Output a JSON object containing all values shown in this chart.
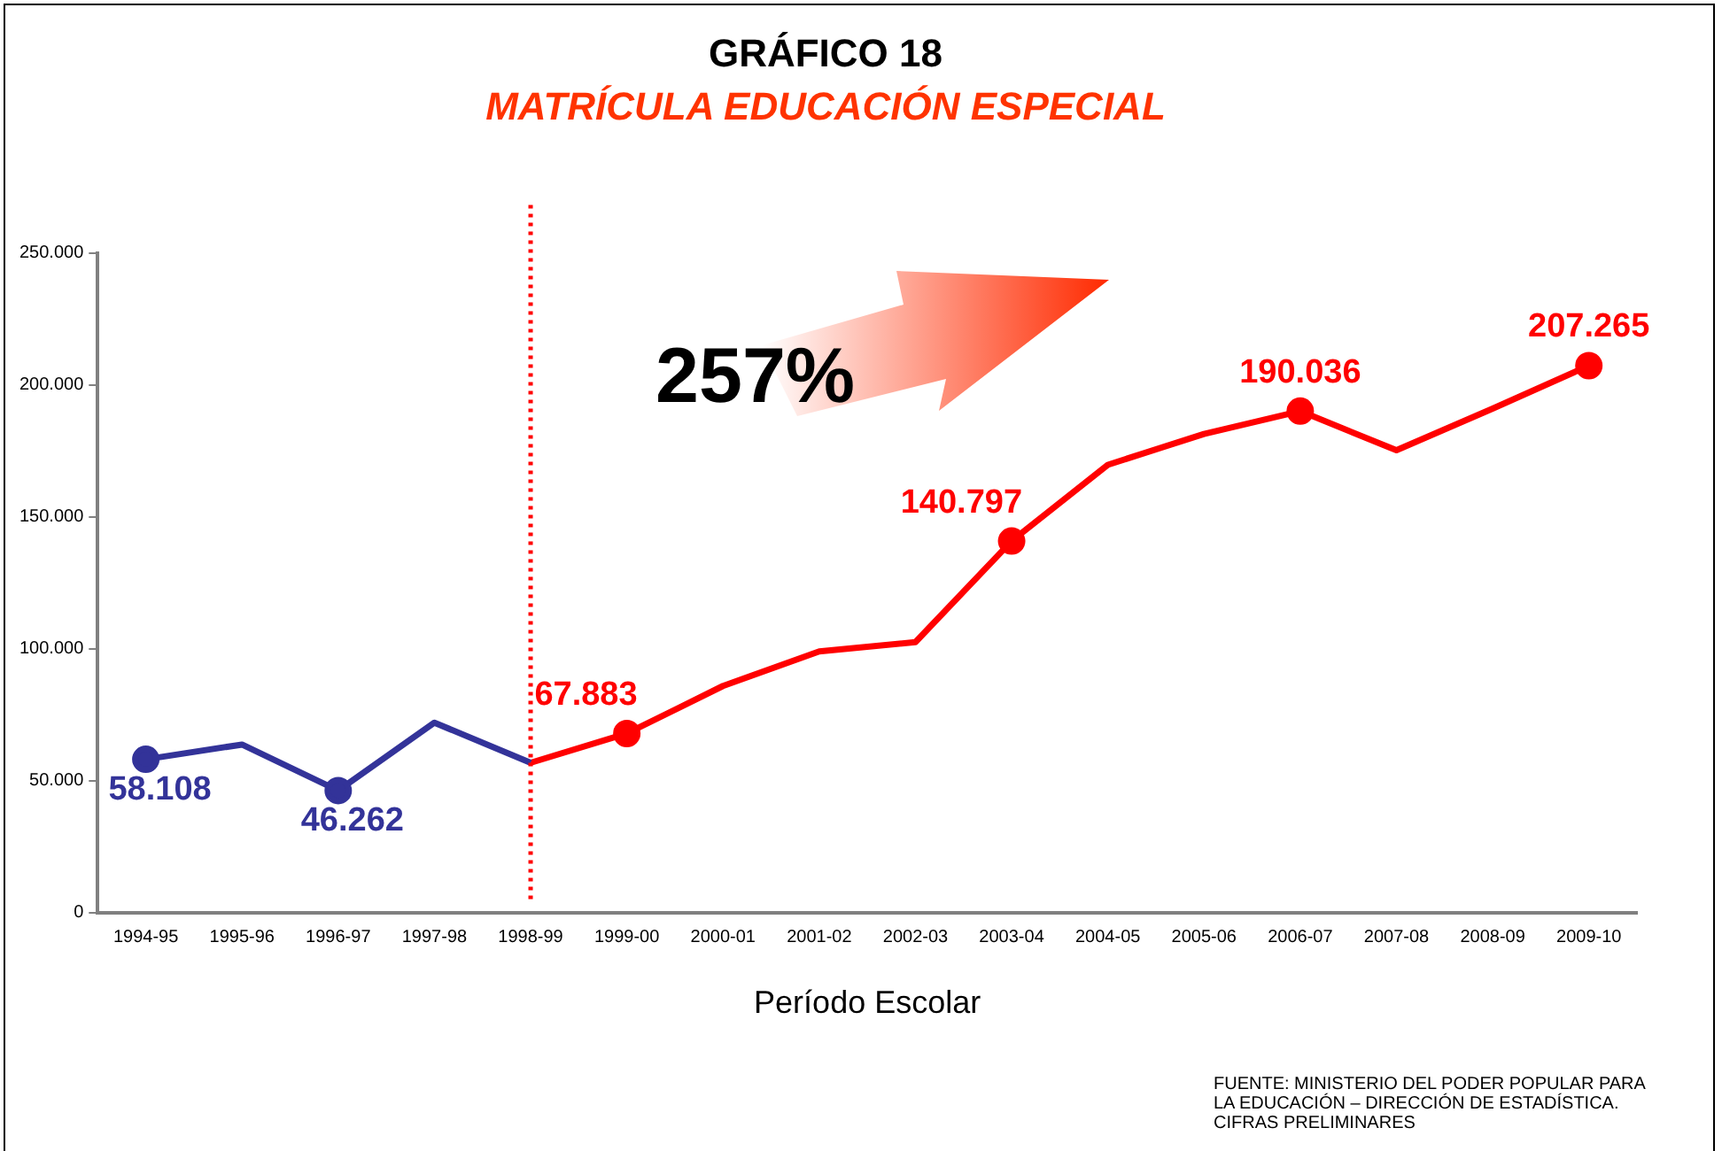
{
  "chart_data": {
    "type": "line",
    "title": "GRÁFICO 18",
    "subtitle": "MATRÍCULA EDUCACIÓN ESPECIAL",
    "xlabel": "Período Escolar",
    "categories": [
      "1994-95",
      "1995-96",
      "1996-97",
      "1997-98",
      "1998-99",
      "1999-00",
      "2000-01",
      "2001-02",
      "2002-03",
      "2003-04",
      "2004-05",
      "2005-06",
      "2006-07",
      "2007-08",
      "2008-09",
      "2009-10"
    ],
    "series": [
      {
        "color": "#333399",
        "values": [
          58108,
          63700,
          46262,
          72000,
          56800,
          null,
          null,
          null,
          null,
          null,
          null,
          null,
          null,
          null,
          null,
          null
        ],
        "value_labels": [
          "58.108",
          null,
          "46.262",
          null,
          null,
          null,
          null,
          null,
          null,
          null,
          null,
          null,
          null,
          null,
          null,
          null
        ]
      },
      {
        "color": "#ff0000",
        "values": [
          null,
          null,
          null,
          null,
          56800,
          67883,
          85900,
          99000,
          102500,
          140797,
          169700,
          181400,
          190036,
          175200,
          191000,
          207265
        ],
        "value_labels": [
          null,
          null,
          null,
          null,
          null,
          "67.883",
          null,
          null,
          null,
          "140.797",
          null,
          null,
          "190.036",
          null,
          null,
          "207.265"
        ]
      }
    ],
    "ylim": [
      0,
      250000
    ],
    "yticks": [
      0,
      {
        "value": 50000,
        "label": "50.000"
      },
      {
        "value": 100000,
        "label": "100.000"
      },
      {
        "value": 150000,
        "label": "150.000"
      },
      {
        "value": 200000,
        "label": "200.000"
      },
      {
        "value": 250000,
        "label": "250.000"
      }
    ],
    "grid": false,
    "legend": false,
    "line_style": "solid",
    "ref_lines": [
      {
        "axis": "x",
        "value": "1998-99",
        "color": "#ff0000",
        "line_style": "dotted"
      }
    ],
    "annotations": [
      "257%",
      "FUENTE: MINISTERIO DEL PODER POPULAR PARA LA EDUCACIÓN – DIRECCIÓN DE ESTADÍSTICA. CIFRAS PRELIMINARES"
    ]
  }
}
